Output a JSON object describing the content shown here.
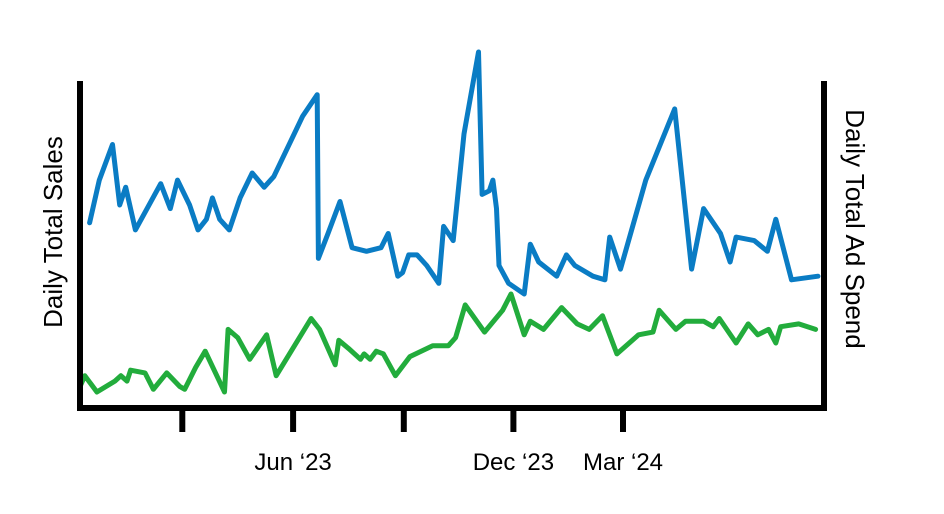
{
  "chart_data": {
    "type": "line",
    "title": "",
    "xlabel": "",
    "ylabel": "Daily Total Sales",
    "y2label": "Daily Total Ad Spend",
    "x_tick_labels": [
      {
        "date": "2023-03-01",
        "label": ""
      },
      {
        "date": "2023-06-01",
        "label": "Jun ‘23"
      },
      {
        "date": "2023-09-01",
        "label": ""
      },
      {
        "date": "2023-12-01",
        "label": "Dec ‘23"
      },
      {
        "date": "2024-03-01",
        "label": "Mar ‘24"
      }
    ],
    "xlim": [
      "2022-12-06",
      "2024-08-15"
    ],
    "ylim": [
      0,
      100
    ],
    "y2lim": [
      0,
      100
    ],
    "grid": false,
    "legend": "none",
    "series": [
      {
        "axis": "left",
        "color": "#0a7cc4",
        "points": [
          [
            "2022-12-14",
            58
          ],
          [
            "2022-12-22",
            70
          ],
          [
            "2023-01-02",
            80
          ],
          [
            "2023-01-08",
            63
          ],
          [
            "2023-01-13",
            68
          ],
          [
            "2023-01-21",
            56
          ],
          [
            "2023-02-11",
            69
          ],
          [
            "2023-02-19",
            62
          ],
          [
            "2023-02-25",
            70
          ],
          [
            "2023-03-07",
            63
          ],
          [
            "2023-03-14",
            56
          ],
          [
            "2023-03-21",
            59
          ],
          [
            "2023-03-26",
            65
          ],
          [
            "2023-04-01",
            59
          ],
          [
            "2023-04-09",
            56
          ],
          [
            "2023-04-18",
            65
          ],
          [
            "2023-04-28",
            72
          ],
          [
            "2023-05-08",
            68
          ],
          [
            "2023-05-16",
            71
          ],
          [
            "2023-06-09",
            88
          ],
          [
            "2023-06-21",
            94
          ],
          [
            "2023-06-22",
            48
          ],
          [
            "2023-06-30",
            55
          ],
          [
            "2023-07-10",
            64
          ],
          [
            "2023-07-20",
            51
          ],
          [
            "2023-08-01",
            50
          ],
          [
            "2023-08-13",
            51
          ],
          [
            "2023-08-19",
            55
          ],
          [
            "2023-08-27",
            43
          ],
          [
            "2023-08-31",
            44
          ],
          [
            "2023-09-05",
            49
          ],
          [
            "2023-09-12",
            49
          ],
          [
            "2023-09-20",
            46
          ],
          [
            "2023-09-30",
            41
          ],
          [
            "2023-10-04",
            57
          ],
          [
            "2023-10-12",
            53
          ],
          [
            "2023-10-21",
            83
          ],
          [
            "2023-11-02",
            106
          ],
          [
            "2023-11-05",
            66
          ],
          [
            "2023-11-11",
            67
          ],
          [
            "2023-11-14",
            70
          ],
          [
            "2023-11-17",
            62
          ],
          [
            "2023-11-19",
            46
          ],
          [
            "2023-11-27",
            41
          ],
          [
            "2023-12-10",
            38
          ],
          [
            "2023-12-15",
            52
          ],
          [
            "2023-12-22",
            47
          ],
          [
            "2024-01-06",
            43
          ],
          [
            "2024-01-14",
            49
          ],
          [
            "2024-01-21",
            46
          ],
          [
            "2024-02-05",
            43
          ],
          [
            "2024-02-15",
            42
          ],
          [
            "2024-02-19",
            54
          ],
          [
            "2024-02-28",
            45
          ],
          [
            "2024-03-20",
            70
          ],
          [
            "2024-04-13",
            90
          ],
          [
            "2024-04-27",
            45
          ],
          [
            "2024-05-07",
            62
          ],
          [
            "2024-05-21",
            55
          ],
          [
            "2024-05-29",
            47
          ],
          [
            "2024-06-03",
            54
          ],
          [
            "2024-06-18",
            53
          ],
          [
            "2024-06-29",
            50
          ],
          [
            "2024-07-06",
            59
          ],
          [
            "2024-07-19",
            42
          ],
          [
            "2024-08-10",
            43
          ]
        ]
      },
      {
        "axis": "right",
        "color": "#22ac3c",
        "points": [
          [
            "2022-12-06",
            7
          ],
          [
            "2022-12-10",
            11
          ],
          [
            "2022-12-15",
            8
          ],
          [
            "2022-12-20",
            5
          ],
          [
            "2023-01-04",
            9
          ],
          [
            "2023-01-09",
            11
          ],
          [
            "2023-01-14",
            9
          ],
          [
            "2023-01-17",
            13
          ],
          [
            "2023-01-29",
            12
          ],
          [
            "2023-02-05",
            6
          ],
          [
            "2023-02-16",
            12
          ],
          [
            "2023-02-27",
            7
          ],
          [
            "2023-03-03",
            6
          ],
          [
            "2023-03-12",
            14
          ],
          [
            "2023-03-20",
            20
          ],
          [
            "2023-04-05",
            5
          ],
          [
            "2023-04-08",
            28
          ],
          [
            "2023-04-16",
            25
          ],
          [
            "2023-04-26",
            17
          ],
          [
            "2023-05-10",
            26
          ],
          [
            "2023-05-18",
            11
          ],
          [
            "2023-06-16",
            32
          ],
          [
            "2023-06-23",
            28
          ],
          [
            "2023-07-06",
            15
          ],
          [
            "2023-07-09",
            24
          ],
          [
            "2023-07-17",
            21
          ],
          [
            "2023-07-27",
            17
          ],
          [
            "2023-07-30",
            19
          ],
          [
            "2023-08-04",
            17
          ],
          [
            "2023-08-09",
            20
          ],
          [
            "2023-08-15",
            19
          ],
          [
            "2023-08-25",
            11
          ],
          [
            "2023-09-06",
            18
          ],
          [
            "2023-09-25",
            22
          ],
          [
            "2023-10-08",
            22
          ],
          [
            "2023-10-14",
            25
          ],
          [
            "2023-10-22",
            37
          ],
          [
            "2023-11-07",
            27
          ],
          [
            "2023-11-22",
            35
          ],
          [
            "2023-11-29",
            41
          ],
          [
            "2023-12-10",
            26
          ],
          [
            "2023-12-15",
            31
          ],
          [
            "2023-12-26",
            28
          ],
          [
            "2024-01-10",
            36
          ],
          [
            "2024-01-23",
            30
          ],
          [
            "2024-02-02",
            28
          ],
          [
            "2024-02-13",
            33
          ],
          [
            "2024-02-25",
            19
          ],
          [
            "2024-03-14",
            26
          ],
          [
            "2024-03-26",
            27
          ],
          [
            "2024-03-31",
            35
          ],
          [
            "2024-04-14",
            28
          ],
          [
            "2024-04-22",
            31
          ],
          [
            "2024-05-07",
            31
          ],
          [
            "2024-05-15",
            29
          ],
          [
            "2024-05-20",
            32
          ],
          [
            "2024-06-03",
            23
          ],
          [
            "2024-06-13",
            30
          ],
          [
            "2024-06-21",
            26
          ],
          [
            "2024-06-30",
            28
          ],
          [
            "2024-07-06",
            23
          ],
          [
            "2024-07-10",
            29
          ],
          [
            "2024-07-25",
            30
          ],
          [
            "2024-08-08",
            28
          ]
        ]
      }
    ]
  }
}
